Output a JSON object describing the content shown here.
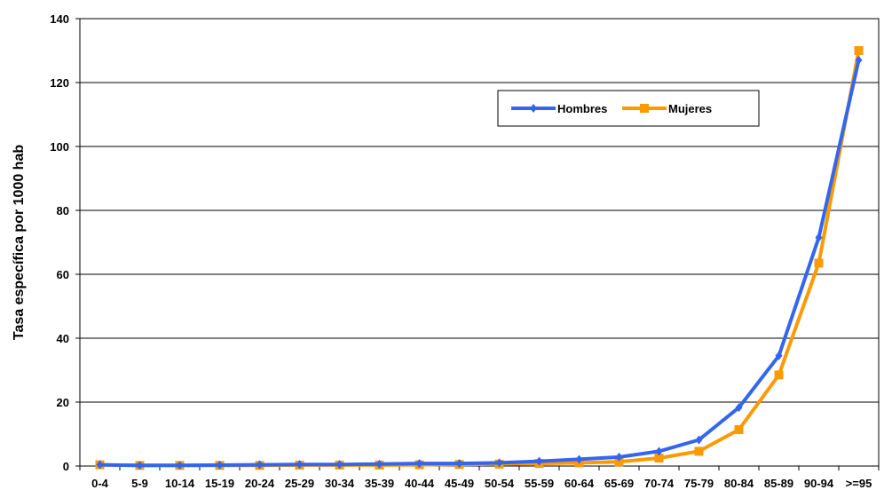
{
  "chart_data": {
    "type": "line",
    "title": "",
    "xlabel": "",
    "ylabel": "Tasa específica por 1000 hab",
    "ylim": [
      0,
      140
    ],
    "yticks": [
      0,
      20,
      40,
      60,
      80,
      100,
      120,
      140
    ],
    "grid": true,
    "legend_position": "top-right",
    "categories": [
      "0-4",
      "5-9",
      "10-14",
      "15-19",
      "20-24",
      "25-29",
      "30-34",
      "35-39",
      "40-44",
      "45-49",
      "50-54",
      "55-59",
      "60-64",
      "65-69",
      "70-74",
      "75-79",
      "80-84",
      "85-89",
      "90-94",
      ">=95"
    ],
    "series": [
      {
        "name": "Hombres",
        "color": "#3366ee",
        "marker": "diamond",
        "values": [
          0.4,
          0.2,
          0.2,
          0.3,
          0.4,
          0.5,
          0.5,
          0.6,
          0.8,
          0.8,
          1.0,
          1.5,
          2.1,
          2.8,
          4.6,
          8.2,
          18.3,
          34.5,
          71.5,
          127.0
        ]
      },
      {
        "name": "Mujeres",
        "color": "#ff9900",
        "marker": "square",
        "values": [
          0.4,
          0.2,
          0.2,
          0.2,
          0.2,
          0.3,
          0.3,
          0.3,
          0.4,
          0.5,
          0.6,
          0.8,
          1.0,
          1.3,
          2.5,
          4.6,
          11.4,
          28.5,
          63.5,
          130.0
        ]
      }
    ]
  }
}
